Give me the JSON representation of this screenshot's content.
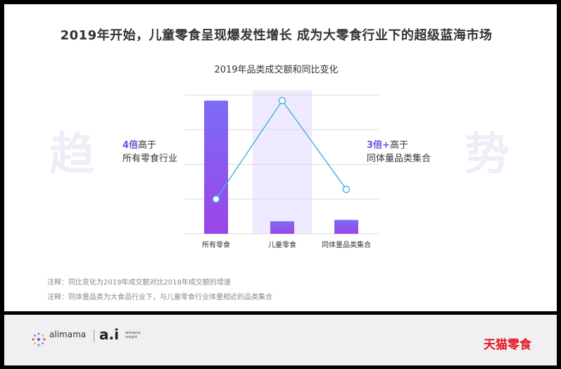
{
  "headline": "2019年开始，儿童零食呈现爆发性增长 成为大零食行业下的超级蓝海市场",
  "background_chars": {
    "left": "趋",
    "right": "势"
  },
  "callout_left": {
    "highlight": "4倍",
    "rest": "高于",
    "line2": "所有零食行业"
  },
  "callout_right": {
    "highlight": "3倍+",
    "rest": "高于",
    "line2": "同体量品类集合"
  },
  "notes": [
    "注释：同比变化为2019年成交额对比2018年成交额的增速",
    "注释：同体量品类为大食品行业下，与儿童零食行业体量相近的品类集合"
  ],
  "footer": {
    "alimama": "alimama",
    "ai": "a.i",
    "ai_sub": "alimama insight",
    "brand": "天猫零食"
  },
  "colors": {
    "bar_top": "#7b6cf6",
    "bar_bottom": "#9b45e6",
    "line": "#4fb3e8",
    "highlight_band": "#efeaff",
    "grid": "#d9d9d9"
  },
  "chart_data": {
    "type": "bar",
    "title": "2019年品类成交额和同比变化",
    "categories": [
      "所有零食",
      "儿童零食",
      "同体量品类集合"
    ],
    "series": [
      {
        "type": "bar",
        "values": [
          0.96,
          0.09,
          0.1
        ]
      },
      {
        "type": "line",
        "values": [
          0.25,
          0.96,
          0.32
        ]
      }
    ],
    "ylim": [
      0,
      1
    ],
    "grid": true,
    "highlight_category": "儿童零食",
    "note": "relative values estimated; chart has no numeric axis"
  }
}
